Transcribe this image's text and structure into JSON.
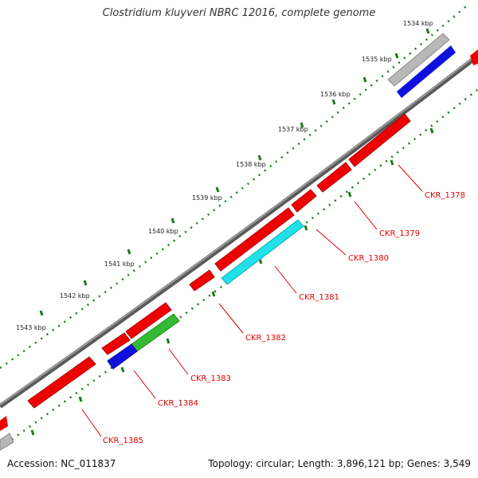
{
  "title": "Clostridium kluyveri NBRC 12016, complete genome",
  "footer": {
    "accession": "Accession: NC_011837",
    "summary": "Topology: circular; Length: 3,896,121 bp; Genes: 3,549"
  },
  "colors": {
    "backbone": "#7a7a7a",
    "tick_dots": "#1a7a1a",
    "label_line": "#e00000",
    "red": "#ee0000",
    "blue": "#1010dd",
    "green": "#33bb33",
    "cyan": "#22e0e8",
    "gray": "#b8b8b8"
  },
  "scale_labels": [
    "1534 kbp",
    "1535 kbp",
    "1536 kbp",
    "1537 kbp",
    "1538 kbp",
    "1539 kbp",
    "1540 kbp",
    "1541 kbp",
    "1542 kbp",
    "1543 kbp"
  ],
  "gene_labels": [
    "CKR_1378",
    "CKR_1379",
    "CKR_1380",
    "CKR_1381",
    "CKR_1382",
    "CKR_1383",
    "CKR_1384",
    "CKR_1385"
  ]
}
